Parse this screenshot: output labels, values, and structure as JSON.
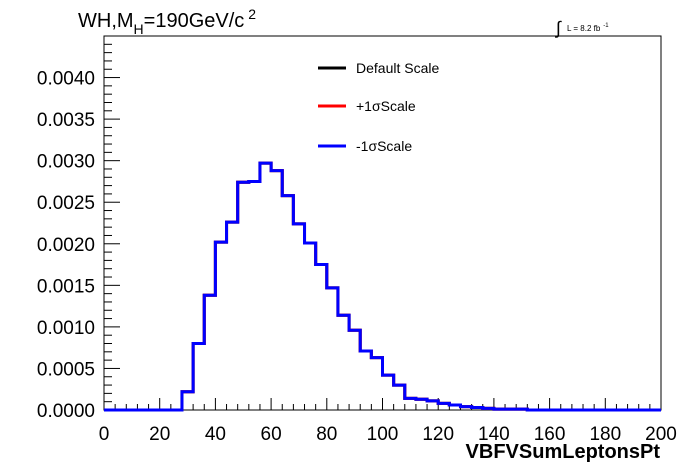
{
  "chart_data": {
    "type": "line",
    "style": "step-histogram",
    "title": {
      "prefix": "WH,M",
      "subscript": "H",
      "suffix": "=190GeV/c",
      "superscript": "2"
    },
    "luminosity": {
      "integral_symbol": "∫",
      "text": "L = 8.2 fb",
      "superscript": "-1"
    },
    "xlabel": "VBFVSumLeptonsPt",
    "ylabel": "",
    "xlim": [
      0,
      200
    ],
    "ylim": [
      0,
      0.0045
    ],
    "x_ticks": [
      "0",
      "20",
      "40",
      "60",
      "80",
      "100",
      "120",
      "140",
      "160",
      "180",
      "200"
    ],
    "y_ticks": [
      "0.0000",
      "0.0005",
      "0.0010",
      "0.0015",
      "0.0020",
      "0.0025",
      "0.0030",
      "0.0035",
      "0.0040"
    ],
    "grid": false,
    "legend_position": "top-center",
    "bin_width": 4,
    "bin_edges": [
      0,
      4,
      8,
      12,
      16,
      20,
      24,
      28,
      32,
      36,
      40,
      44,
      48,
      52,
      56,
      60,
      64,
      68,
      72,
      76,
      80,
      84,
      88,
      92,
      96,
      100,
      104,
      108,
      112,
      116,
      120,
      124,
      128,
      132,
      136,
      140,
      144,
      148,
      152,
      156,
      160,
      164,
      168,
      172,
      176,
      180,
      184,
      188,
      192,
      196,
      200
    ],
    "series": [
      {
        "name": "Default Scale",
        "color": "#000000",
        "values": [
          0,
          0,
          0,
          0,
          0,
          0,
          0,
          0.00022,
          0.0008,
          0.00138,
          0.00202,
          0.00226,
          0.00274,
          0.00275,
          0.00297,
          0.00288,
          0.00258,
          0.00224,
          0.00201,
          0.00175,
          0.00147,
          0.00114,
          0.00096,
          0.00071,
          0.00063,
          0.00042,
          0.0003,
          0.00014,
          0.00013,
          0.00011,
          8e-05,
          6e-05,
          4e-05,
          3e-05,
          2e-05,
          1e-05,
          1e-05,
          1e-05,
          0,
          0,
          0,
          0,
          0,
          0,
          0,
          0,
          0,
          0,
          0,
          0
        ]
      },
      {
        "name": "+1σScale",
        "color": "#ff0000",
        "values": [
          0,
          0,
          0,
          0,
          0,
          0,
          0,
          0.00022,
          0.0008,
          0.00138,
          0.00202,
          0.00226,
          0.00274,
          0.00275,
          0.00297,
          0.00288,
          0.00258,
          0.00224,
          0.00201,
          0.00175,
          0.00147,
          0.00114,
          0.00096,
          0.00071,
          0.00063,
          0.00042,
          0.0003,
          0.00014,
          0.00013,
          0.00011,
          8e-05,
          6e-05,
          4e-05,
          3e-05,
          2e-05,
          1e-05,
          1e-05,
          1e-05,
          0,
          0,
          0,
          0,
          0,
          0,
          0,
          0,
          0,
          0,
          0,
          0
        ]
      },
      {
        "name": "-1σScale",
        "color": "#0000ff",
        "values": [
          0,
          0,
          0,
          0,
          0,
          0,
          0,
          0.00022,
          0.0008,
          0.00138,
          0.00202,
          0.00226,
          0.00274,
          0.00275,
          0.00297,
          0.00288,
          0.00258,
          0.00224,
          0.00201,
          0.00175,
          0.00147,
          0.00114,
          0.00096,
          0.00071,
          0.00063,
          0.00042,
          0.0003,
          0.00014,
          0.00013,
          0.00011,
          8e-05,
          6e-05,
          4e-05,
          3e-05,
          2e-05,
          1e-05,
          1e-05,
          1e-05,
          0,
          0,
          0,
          0,
          0,
          0,
          0,
          0,
          0,
          0,
          0,
          0
        ]
      }
    ]
  }
}
